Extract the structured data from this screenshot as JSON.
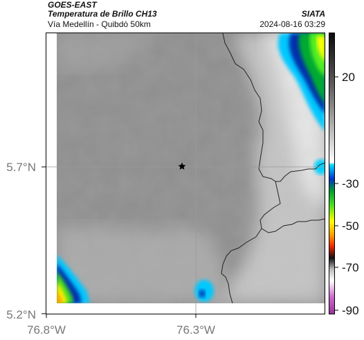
{
  "header": {
    "satellite": "GOES-EAST",
    "product": "Temperatura de Brillo CH13",
    "route": "Vía Medellín - Quibdó 50km",
    "organization": "SIATA",
    "datetime": "2024-08-16 03:29"
  },
  "map": {
    "lat_ticks": [
      "5.7°N",
      "5.2°N"
    ],
    "lon_ticks": [
      "76.8°W",
      "76.3°W"
    ],
    "marker_icon": "star-icon",
    "colors": {
      "frame": "#000000",
      "borders": "#222222",
      "gridline": "#9a9a9a"
    }
  },
  "colorbar": {
    "ticks": [
      "20",
      "-30",
      "-50",
      "-70",
      "-90"
    ]
  }
}
